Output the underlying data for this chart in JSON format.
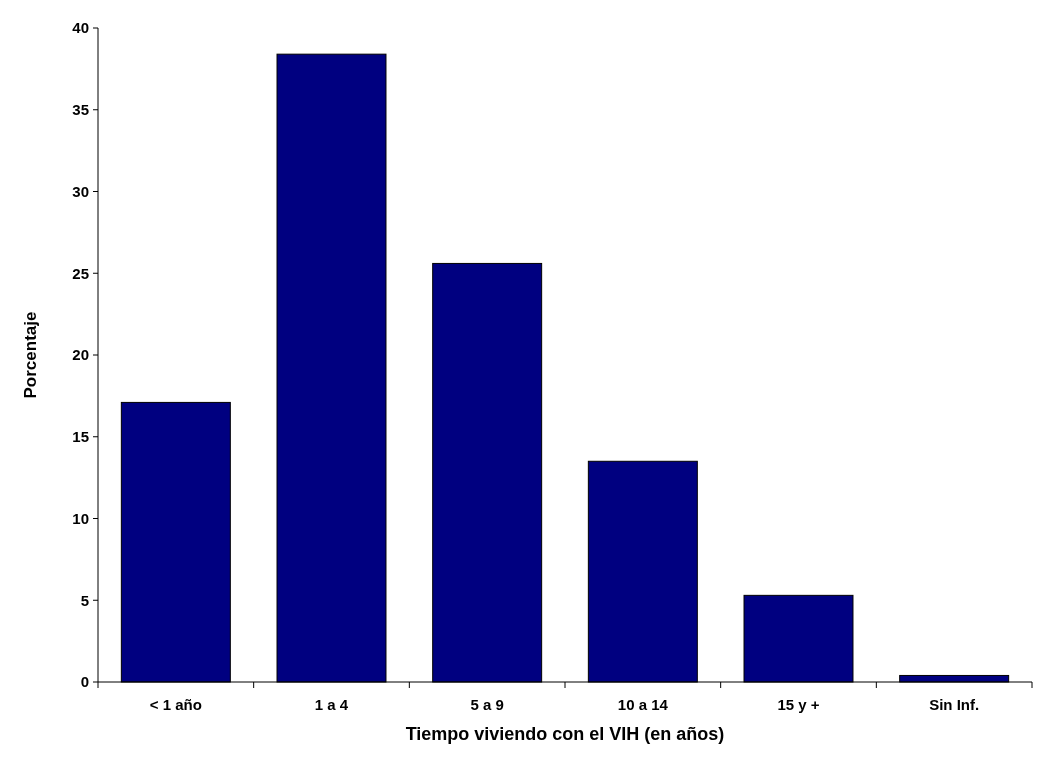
{
  "chart_data": {
    "type": "bar",
    "xlabel": "Tiempo viviendo con el VIH (en años)",
    "ylabel": "Porcentaje",
    "categories": [
      "< 1 año",
      "1 a 4",
      "5 a 9",
      "10 a 14",
      "15 y +",
      "Sin Inf."
    ],
    "values": [
      17.1,
      38.4,
      25.6,
      13.5,
      5.3,
      0.4
    ],
    "color": "#000080",
    "ylim": [
      0,
      40
    ],
    "yticks": [
      0,
      5,
      10,
      15,
      20,
      25,
      30,
      35,
      40
    ],
    "grid": false
  }
}
